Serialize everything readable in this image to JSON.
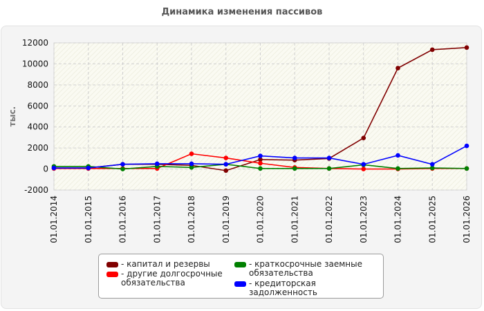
{
  "chart_data": {
    "type": "line",
    "title": "Динамика изменения пассивов",
    "ylabel": "тыс.",
    "xlabel": "",
    "ylim": [
      -2000,
      12000
    ],
    "yticks": [
      -2000,
      0,
      2000,
      4000,
      6000,
      8000,
      10000,
      12000
    ],
    "grid": true,
    "legend_position": "bottom",
    "categories": [
      "01.01.2014",
      "01.01.2015",
      "01.01.2016",
      "01.01.2017",
      "01.01.2018",
      "01.01.2019",
      "01.01.2020",
      "01.01.2021",
      "01.01.2022",
      "01.01.2023",
      "01.01.2024",
      "01.01.2025",
      "01.01.2026"
    ],
    "series": [
      {
        "name": "капитал и резервы",
        "color": "#800000",
        "values": [
          100,
          100,
          450,
          450,
          350,
          -150,
          900,
          850,
          1000,
          2950,
          9600,
          11350,
          11550
        ]
      },
      {
        "name": "другие долгосрочные обязательства",
        "color": "#ff0000",
        "values": [
          50,
          50,
          50,
          50,
          1450,
          1050,
          550,
          150,
          50,
          0,
          0,
          50,
          50
        ]
      },
      {
        "name": "краткосрочные заемные обязательства",
        "color": "#008000",
        "values": [
          250,
          250,
          0,
          250,
          150,
          450,
          50,
          50,
          50,
          400,
          50,
          100,
          50
        ]
      },
      {
        "name": "кредиторская задолженность",
        "color": "#0000ff",
        "values": [
          100,
          100,
          450,
          500,
          500,
          450,
          1250,
          1050,
          1050,
          450,
          1300,
          450,
          2200
        ]
      }
    ]
  }
}
